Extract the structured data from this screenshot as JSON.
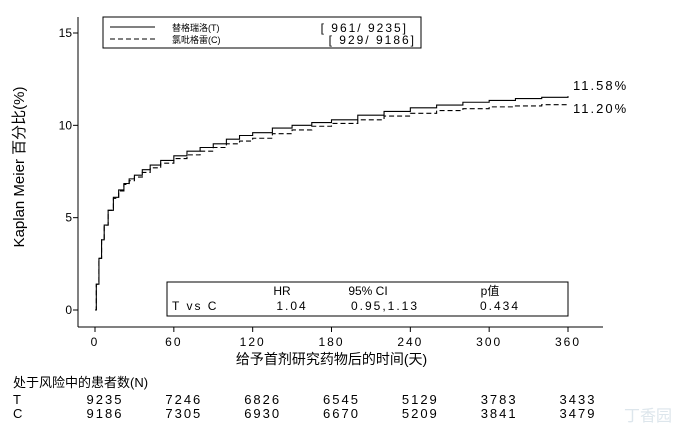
{
  "chart_data": {
    "type": "line",
    "ylabel": "Kaplan Meier 百分比(%)",
    "xlabel": "给予首剂研究药物后的时间(天)",
    "xlim": [
      0,
      360
    ],
    "ylim": [
      0,
      15
    ],
    "xticks": [
      0,
      60,
      120,
      180,
      240,
      300,
      360
    ],
    "yticks": [
      0,
      5,
      10,
      15
    ],
    "legend_position": "top-left",
    "series": [
      {
        "name": "替格瑞洛(T)",
        "counts": "[ 961/ 9235]",
        "end_label": "11.58%",
        "line_style": "solid",
        "x": [
          0,
          1,
          3,
          5,
          7,
          10,
          14,
          18,
          22,
          26,
          30,
          36,
          42,
          50,
          60,
          70,
          80,
          90,
          100,
          110,
          120,
          135,
          150,
          165,
          180,
          200,
          220,
          240,
          260,
          280,
          300,
          320,
          340,
          360
        ],
        "y": [
          0,
          1.4,
          2.8,
          3.8,
          4.6,
          5.4,
          6.1,
          6.5,
          6.85,
          7.1,
          7.3,
          7.6,
          7.85,
          8.1,
          8.35,
          8.6,
          8.8,
          9.0,
          9.25,
          9.45,
          9.6,
          9.85,
          10.0,
          10.15,
          10.3,
          10.55,
          10.75,
          10.95,
          11.1,
          11.25,
          11.35,
          11.45,
          11.52,
          11.58
        ]
      },
      {
        "name": "氯吡格雷(C)",
        "counts": "[ 929/ 9186]",
        "end_label": "11.20%",
        "line_style": "dashed",
        "x": [
          0,
          1,
          3,
          5,
          7,
          10,
          14,
          18,
          22,
          26,
          30,
          36,
          42,
          50,
          60,
          70,
          80,
          90,
          100,
          110,
          120,
          135,
          150,
          165,
          180,
          200,
          220,
          240,
          260,
          280,
          300,
          320,
          340,
          360
        ],
        "y": [
          0,
          1.4,
          2.8,
          3.8,
          4.6,
          5.4,
          6.05,
          6.45,
          6.8,
          7.0,
          7.2,
          7.45,
          7.7,
          7.95,
          8.2,
          8.4,
          8.6,
          8.8,
          9.0,
          9.15,
          9.3,
          9.55,
          9.75,
          9.95,
          10.1,
          10.3,
          10.5,
          10.65,
          10.8,
          10.9,
          11.0,
          11.05,
          11.12,
          11.2
        ]
      }
    ],
    "stats_box": {
      "headers": [
        "HR",
        "95% CI",
        "p值"
      ],
      "row_label": "T vs C",
      "values": [
        "1.04",
        "0.95,1.13",
        "0.434"
      ]
    },
    "risk_table": {
      "title": "处于风险中的患者数(N)",
      "rows": [
        {
          "label": "T",
          "values": [
            "9235",
            "7246",
            "6826",
            "6545",
            "5129",
            "3783",
            "3433"
          ]
        },
        {
          "label": "C",
          "values": [
            "9186",
            "7305",
            "6930",
            "6670",
            "5209",
            "3841",
            "3479"
          ]
        }
      ]
    }
  },
  "watermark": "丁香园"
}
